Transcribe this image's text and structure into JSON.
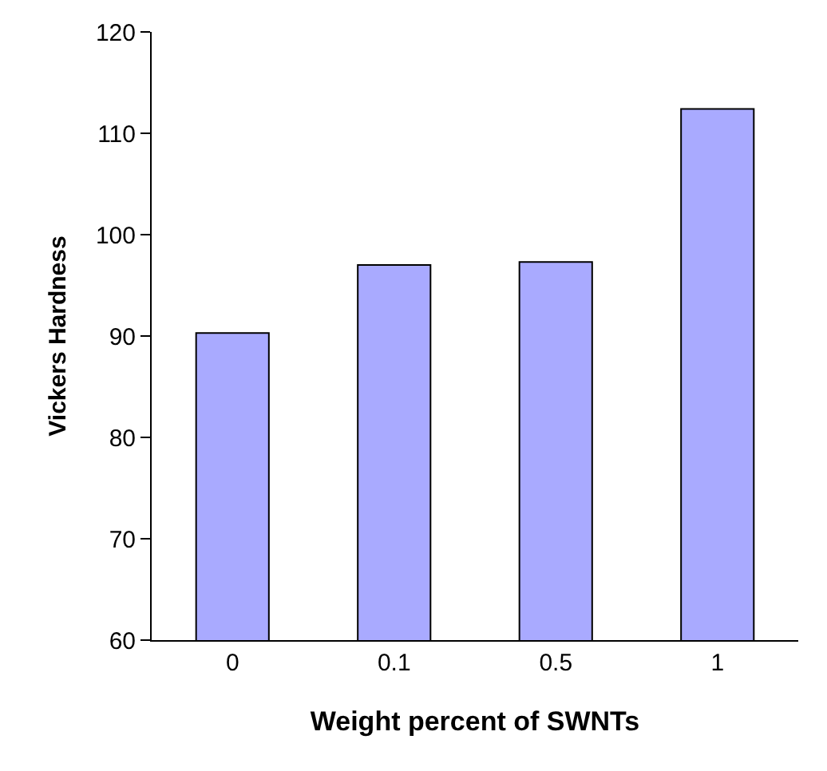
{
  "chart_data": {
    "type": "bar",
    "xlabel": "Weight percent of SWNTs",
    "ylabel": "Vickers Hardness",
    "categories": [
      "0",
      "0.1",
      "0.5",
      "1"
    ],
    "values": [
      90.3,
      97,
      97.3,
      112.4
    ],
    "color": "#a9aaff",
    "ylim": [
      60,
      120
    ],
    "yticks": [
      60,
      70,
      80,
      90,
      100,
      110,
      120
    ],
    "grid": false,
    "legend": false
  }
}
